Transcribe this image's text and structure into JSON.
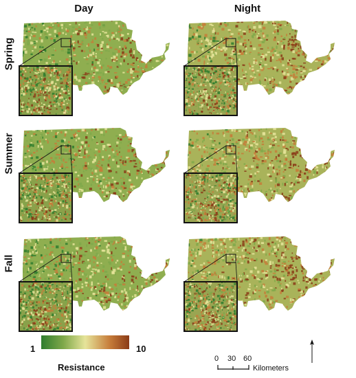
{
  "columns": [
    "Day",
    "Night"
  ],
  "rows": [
    "Spring",
    "Summer",
    "Fall"
  ],
  "legend": {
    "min": "1",
    "max": "10",
    "title": "Resistance",
    "colors": [
      "#2f7d2e",
      "#7fa84a",
      "#e6e49a",
      "#c67c3a",
      "#8b3b17"
    ]
  },
  "scale": {
    "ticks": [
      "0",
      "30",
      "60"
    ],
    "unit": "Kilometers"
  },
  "north_symbol": "N"
}
